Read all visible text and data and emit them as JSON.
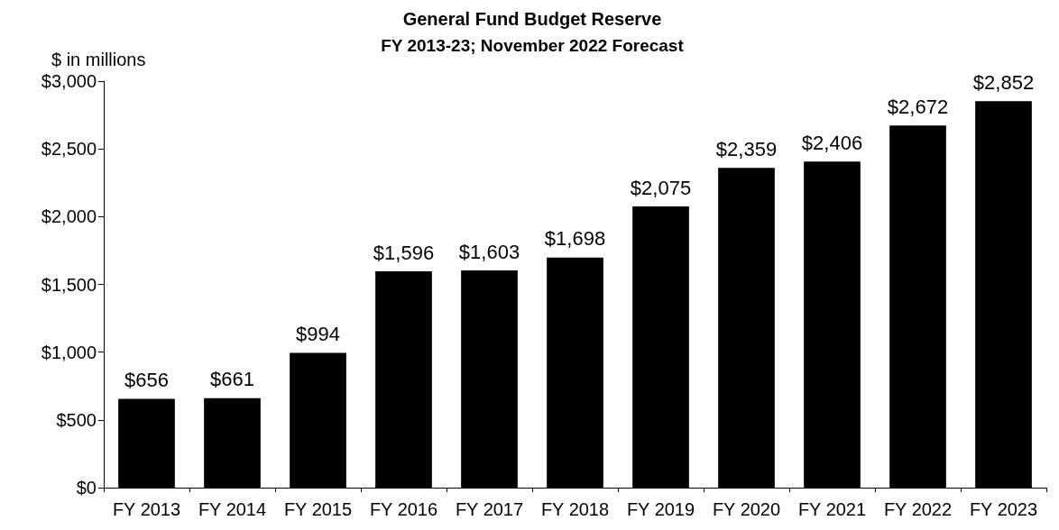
{
  "chart_data": {
    "type": "bar",
    "title": "General Fund Budget Reserve",
    "subtitle": "FY 2013-23; November 2022 Forecast",
    "ylabel": "$ in millions",
    "categories": [
      "FY 2013",
      "FY 2014",
      "FY 2015",
      "FY 2016",
      "FY 2017",
      "FY 2018",
      "FY 2019",
      "FY 2020",
      "FY 2021",
      "FY 2022",
      "FY 2023"
    ],
    "values": [
      656,
      661,
      994,
      1596,
      1603,
      1698,
      2075,
      2359,
      2406,
      2672,
      2852
    ],
    "value_labels": [
      "$656",
      "$661",
      "$994",
      "$1,596",
      "$1,603",
      "$1,698",
      "$2,075",
      "$2,359",
      "$2,406",
      "$2,672",
      "$2,852"
    ],
    "color": "#000000",
    "ylim": [
      0,
      3000
    ],
    "yticks": [
      {
        "value": 0,
        "label": "$0"
      },
      {
        "value": 500,
        "label": "$500"
      },
      {
        "value": 1000,
        "label": "$1,000"
      },
      {
        "value": 1500,
        "label": "$1,500"
      },
      {
        "value": 2000,
        "label": "$2,000"
      },
      {
        "value": 2500,
        "label": "$2,500"
      },
      {
        "value": 3000,
        "label": "$3,000"
      }
    ],
    "grid": false
  }
}
